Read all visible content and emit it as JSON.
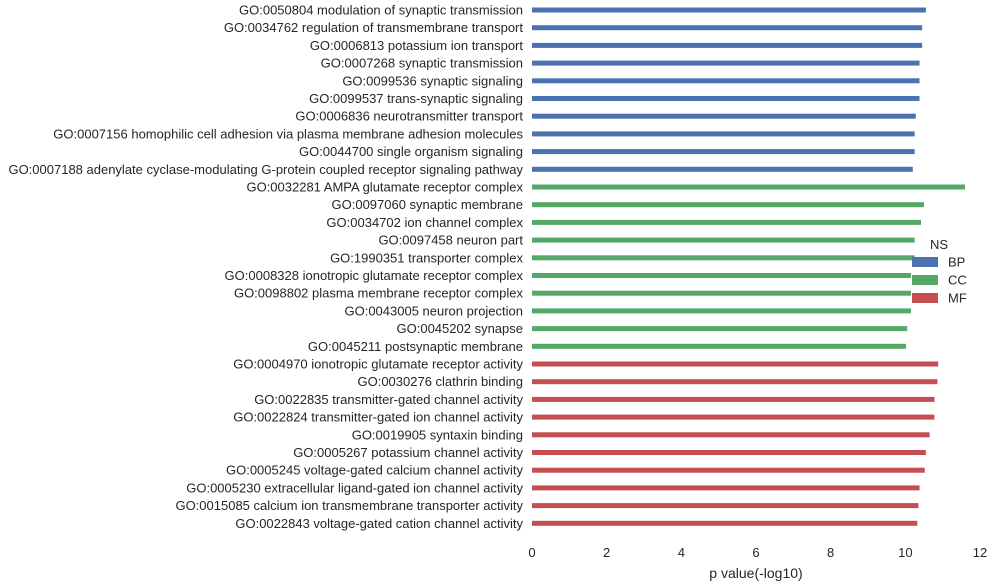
{
  "chart_data": {
    "type": "bar",
    "orientation": "horizontal",
    "title": "",
    "xlabel": "p value(-log10)",
    "ylabel": "",
    "xlim": [
      0,
      12
    ],
    "xticks": [
      "0",
      "2",
      "4",
      "6",
      "8",
      "10",
      "12"
    ],
    "grid": false,
    "legend": {
      "title": "NS",
      "placement": "right",
      "entries": [
        "BP",
        "CC",
        "MF"
      ]
    },
    "colors": {
      "BP": "#4c72b0",
      "CC": "#55a868",
      "MF": "#c44e52"
    },
    "categories": [
      "GO:0050804 modulation of synaptic transmission",
      "GO:0034762 regulation of transmembrane transport",
      "GO:0006813 potassium ion transport",
      "GO:0007268 synaptic transmission",
      "GO:0099536 synaptic signaling",
      "GO:0099537 trans-synaptic signaling",
      "GO:0006836 neurotransmitter transport",
      "GO:0007156 homophilic cell adhesion via plasma membrane adhesion molecules",
      "GO:0044700 single organism signaling",
      "GO:0007188 adenylate cyclase-modulating G-protein coupled receptor signaling pathway",
      "GO:0032281 AMPA glutamate receptor complex",
      "GO:0097060 synaptic membrane",
      "GO:0034702 ion channel complex",
      "GO:0097458 neuron part",
      "GO:1990351 transporter complex",
      "GO:0008328 ionotropic glutamate receptor complex",
      "GO:0098802 plasma membrane receptor complex",
      "GO:0043005 neuron projection",
      "GO:0045202 synapse",
      "GO:0045211 postsynaptic membrane",
      "GO:0004970 ionotropic glutamate receptor activity",
      "GO:0030276 clathrin binding",
      "GO:0022835 transmitter-gated channel activity",
      "GO:0022824 transmitter-gated ion channel activity",
      "GO:0019905 syntaxin binding",
      "GO:0005267 potassium channel activity",
      "GO:0005245 voltage-gated calcium channel activity",
      "GO:0005230 extracellular ligand-gated ion channel activity",
      "GO:0015085 calcium ion transmembrane transporter activity",
      "GO:0022843 voltage-gated cation channel activity"
    ],
    "groups": [
      "BP",
      "BP",
      "BP",
      "BP",
      "BP",
      "BP",
      "BP",
      "BP",
      "BP",
      "BP",
      "CC",
      "CC",
      "CC",
      "CC",
      "CC",
      "CC",
      "CC",
      "CC",
      "CC",
      "CC",
      "MF",
      "MF",
      "MF",
      "MF",
      "MF",
      "MF",
      "MF",
      "MF",
      "MF",
      "MF"
    ],
    "values": [
      10.55,
      10.45,
      10.45,
      10.38,
      10.38,
      10.38,
      10.28,
      10.25,
      10.25,
      10.2,
      11.6,
      10.5,
      10.42,
      10.25,
      10.25,
      10.15,
      10.15,
      10.15,
      10.05,
      10.02,
      10.88,
      10.86,
      10.78,
      10.78,
      10.65,
      10.55,
      10.52,
      10.38,
      10.35,
      10.32
    ]
  }
}
